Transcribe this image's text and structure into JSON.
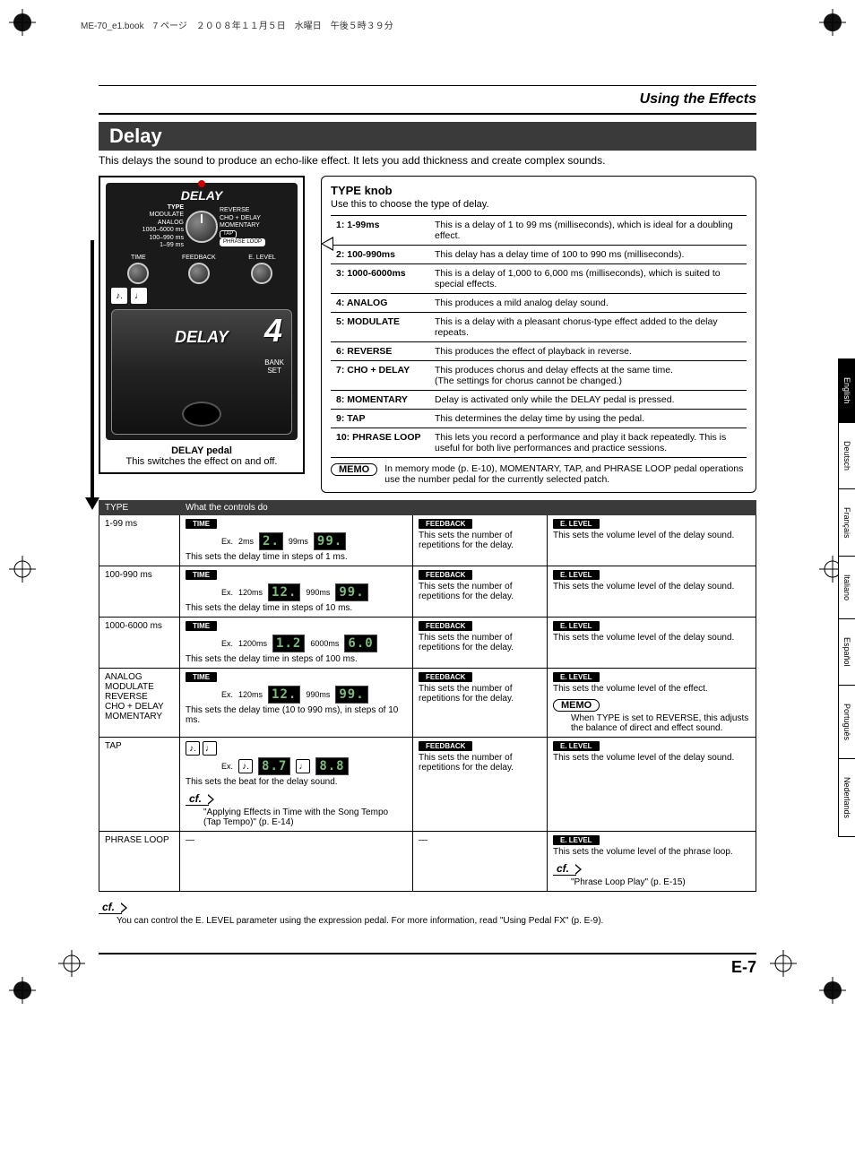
{
  "header_meta": "ME-70_e1.book　7 ページ　２００８年１１月５日　水曜日　午後５時３９分",
  "breadcrumb_title": "Using the Effects",
  "section_title": "Delay",
  "intro": "This delays the sound to produce an echo-like effect. It lets you add thickness and create complex sounds.",
  "device": {
    "title": "DELAY",
    "type_label": "TYPE",
    "left_labels": [
      "MODULATE",
      "ANALOG",
      "1000–6000 ms",
      "100–990 ms",
      "1–99 ms"
    ],
    "right_labels": [
      "REVERSE",
      "CHO + DELAY",
      "MOMENTARY",
      "TAP",
      "PHRASE LOOP"
    ],
    "knob_labels": [
      "TIME",
      "FEEDBACK",
      "E. LEVEL"
    ],
    "big_number": "4",
    "pedal_text": "DELAY",
    "bank_text": "BANK\nSET",
    "pedal_callout_title": "DELAY pedal",
    "pedal_callout_text": "This switches the effect on and off."
  },
  "type_knob": {
    "heading": "TYPE knob",
    "sub": "Use this to choose the type of delay.",
    "rows": [
      {
        "k": "1: 1-99ms",
        "v": "This is a delay of 1 to 99 ms (milliseconds), which is ideal for a doubling effect."
      },
      {
        "k": "2: 100-990ms",
        "v": "This delay has a delay time of 100 to 990 ms (milliseconds)."
      },
      {
        "k": "3: 1000-6000ms",
        "v": "This is a delay of 1,000 to 6,000 ms (milliseconds), which is suited to special effects."
      },
      {
        "k": "4: ANALOG",
        "v": "This produces a mild analog delay sound."
      },
      {
        "k": "5: MODULATE",
        "v": "This is a delay with a pleasant chorus-type effect added to the delay repeats."
      },
      {
        "k": "6: REVERSE",
        "v": "This produces the effect of playback in reverse."
      },
      {
        "k": "7: CHO + DELAY",
        "v": "This produces chorus and delay effects at the same time.\n(The settings for chorus cannot be changed.)"
      },
      {
        "k": "8: MOMENTARY",
        "v": "Delay is activated only while the DELAY pedal is pressed."
      },
      {
        "k": "9: TAP",
        "v": "This determines the delay time by using the pedal."
      },
      {
        "k": "10: PHRASE LOOP",
        "v": "This lets you record a performance and play it back repeatedly. This is useful for both live performances and practice sessions."
      }
    ],
    "memo_label": "MEMO",
    "memo_text": "In memory mode (p. E-10), MOMENTARY, TAP, and PHRASE LOOP pedal operations use the number pedal for the currently selected patch."
  },
  "controls_table": {
    "headers": [
      "TYPE",
      "What the controls do"
    ],
    "pills": {
      "time": "TIME",
      "feedback": "FEEDBACK",
      "elevel": "E. LEVEL"
    },
    "ex_label": "Ex.",
    "fb_text": "This sets the number of repetitions for the delay.",
    "el_text": "This sets the volume level of the delay sound.",
    "el_effect_text": "This sets the volume level of the effect.",
    "el_loop_text": "This sets the volume level of the phrase loop.",
    "memo_label": "MEMO",
    "reverse_memo": "When TYPE is set to REVERSE, this adjusts the balance of direct and effect sound.",
    "cf_label": "cf.",
    "tap_cf": "\"Applying Effects in Time with the Song Tempo (Tap Tempo)\" (p. E-14)",
    "loop_cf": "\"Phrase Loop Play\" (p. E-15)",
    "rows": [
      {
        "type": "1-99 ms",
        "time_desc": "This sets the delay time in steps of 1 ms.",
        "ex_lo_label": "2ms",
        "ex_lo": "2.",
        "ex_hi_label": "99ms",
        "ex_hi": "99."
      },
      {
        "type": "100-990 ms",
        "time_desc": "This sets the delay time in steps of 10 ms.",
        "ex_lo_label": "120ms",
        "ex_lo": "12.",
        "ex_hi_label": "990ms",
        "ex_hi": "99."
      },
      {
        "type": "1000-6000 ms",
        "time_desc": "This sets the delay time in steps of 100 ms.",
        "ex_lo_label": "1200ms",
        "ex_lo": "1.2",
        "ex_hi_label": "6000ms",
        "ex_hi": "6.0"
      },
      {
        "type": "ANALOG\nMODULATE\nREVERSE\nCHO + DELAY\nMOMENTARY",
        "time_desc": "This sets the delay time (10 to 990 ms), in steps of 10 ms.",
        "ex_lo_label": "120ms",
        "ex_lo": "12.",
        "ex_hi_label": "990ms",
        "ex_hi": "99.",
        "el_variant": "effect"
      },
      {
        "type": "TAP",
        "time_desc": "This sets the beat for the delay sound.",
        "tap": true,
        "ex_lo": "8.7",
        "ex_hi": "8.8"
      },
      {
        "type": "PHRASE LOOP",
        "loop": true
      }
    ]
  },
  "footer_cf": {
    "label": "cf.",
    "text": "You can control the E. LEVEL parameter using the expression pedal. For more information, read \"Using Pedal FX\" (p. E-9)."
  },
  "page_number": "E-7",
  "languages": [
    "English",
    "Deutsch",
    "Français",
    "Italiano",
    "Español",
    "Português",
    "Nederlands"
  ]
}
